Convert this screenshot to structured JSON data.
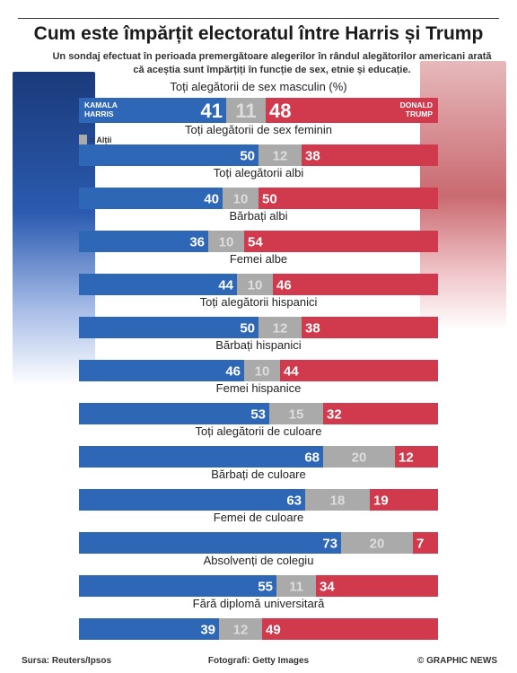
{
  "title": "Cum este împărțit electoratul între Harris și Trump",
  "subtitle": "Un sondaj efectuat în perioada premergătoare alegerilor în rândul alegătorilor americani arată că aceștia sunt împărțiți în funcție de sex, etnie și educație.",
  "legend_other": "= Alții",
  "candidates": {
    "harris": "KAMALA HARRIS",
    "trump": "DONALD TRUMP"
  },
  "colors": {
    "harris": "#2f67b7",
    "other": "#aaaaaa",
    "trump": "#d13a4d"
  },
  "footer": {
    "source": "Sursa: Reuters/Ipsos",
    "photos": "Fotografi: Getty Images",
    "credit": "© GRAPHIC NEWS"
  },
  "chart_data": {
    "type": "bar",
    "stacked": true,
    "orientation": "horizontal",
    "categories": [
      "Toți alegătorii de sex masculin (%)",
      "Toți alegătorii de sex feminin",
      "Toți alegătorii albi",
      "Bărbați albi",
      "Femei albe",
      "Toți alegătorii hispanici",
      "Bărbați hispanici",
      "Femei hispanice",
      "Toți alegătorii de culoare",
      "Bărbați de culoare",
      "Femei de culoare",
      "Absolvenți de colegiu",
      "Fără diplomă universitară"
    ],
    "series": [
      {
        "name": "KAMALA HARRIS",
        "values": [
          41,
          50,
          40,
          36,
          44,
          50,
          46,
          53,
          68,
          63,
          73,
          55,
          39
        ]
      },
      {
        "name": "Alții",
        "values": [
          11,
          12,
          10,
          10,
          10,
          12,
          10,
          15,
          20,
          18,
          20,
          11,
          12
        ]
      },
      {
        "name": "DONALD TRUMP",
        "values": [
          48,
          38,
          50,
          54,
          46,
          38,
          44,
          32,
          12,
          19,
          7,
          34,
          49
        ]
      }
    ],
    "xlim": [
      0,
      100
    ]
  }
}
